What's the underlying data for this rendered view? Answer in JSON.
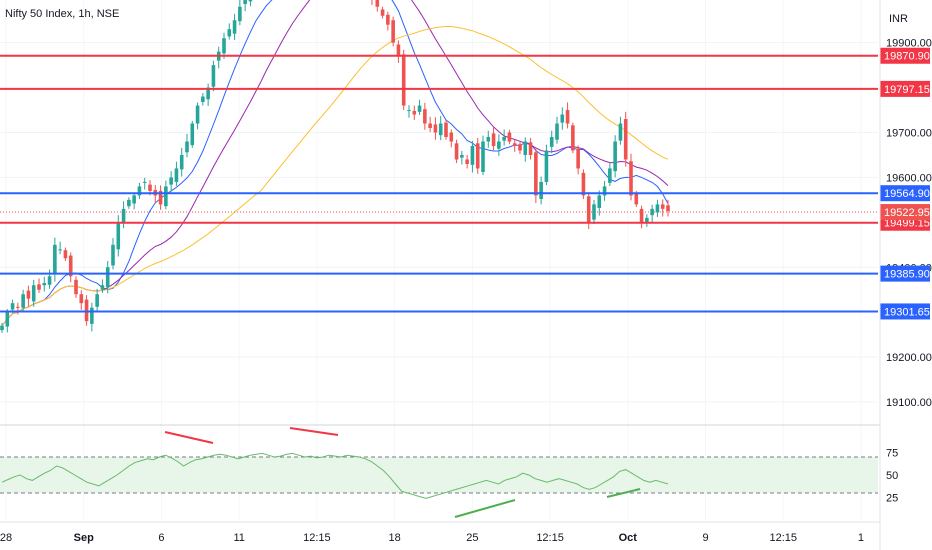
{
  "header": {
    "title": "Nifty 50 Index, 1h, NSE",
    "currency": "INR"
  },
  "colors": {
    "up": "#26a69a",
    "down": "#ef5350",
    "red_line": "#f23645",
    "blue_line": "#2962ff",
    "ma_fast": "#2962ff",
    "ma_mid": "#9c27b0",
    "ma_slow": "#fbc02d",
    "rsi_line": "#66bb6a",
    "rsi_band": "#e8f5e9",
    "divergence_bear": "#f23645",
    "divergence_bull": "#4caf50"
  },
  "chart_data": {
    "type": "candlestick",
    "price_axis": {
      "min": 19060,
      "max": 19995,
      "ticks": [
        {
          "value": 19100,
          "label": "19100.00"
        },
        {
          "value": 19200,
          "label": "19200.00"
        },
        {
          "value": 19400,
          "label": "19400.00"
        },
        {
          "value": 19600,
          "label": "19600.00"
        },
        {
          "value": 19700,
          "label": "19700.00"
        },
        {
          "value": 19900,
          "label": "19900.00"
        }
      ]
    },
    "time_axis": {
      "labels": [
        "28",
        "Sep",
        "6",
        "11",
        "12:15",
        "18",
        "25",
        "12:15",
        "Oct",
        "9",
        "12:15",
        "1"
      ],
      "bold": [
        "Sep",
        "Oct"
      ]
    },
    "horizontal_levels": [
      {
        "value": 19870.9,
        "label": "19870.90",
        "color": "red"
      },
      {
        "value": 19797.15,
        "label": "19797.15",
        "color": "red"
      },
      {
        "value": 19564.9,
        "label": "19564.90",
        "color": "blue"
      },
      {
        "value": 19499.15,
        "label": "19499.15",
        "color": "red"
      },
      {
        "value": 19385.9,
        "label": "19385.90",
        "color": "blue"
      },
      {
        "value": 19301.65,
        "label": "19301.65",
        "color": "blue"
      }
    ],
    "last_price": {
      "value": 19522.95,
      "label": "19522.95"
    },
    "close_path": [
      19270,
      19300,
      19320,
      19310,
      19340,
      19330,
      19360,
      19350,
      19365,
      19380,
      19450,
      19440,
      19420,
      19380,
      19340,
      19320,
      19280,
      19310,
      19340,
      19360,
      19400,
      19450,
      19500,
      19530,
      19550,
      19560,
      19580,
      19590,
      19570,
      19560,
      19540,
      19580,
      19600,
      19620,
      19650,
      19680,
      19720,
      19760,
      19780,
      19800,
      19850,
      19880,
      19910,
      19930,
      19950,
      19980,
      20000,
      20010,
      20020,
      20010,
      20030,
      20020,
      20040,
      20050,
      20060,
      20070,
      20060,
      20080,
      20090,
      20100,
      20110,
      20120,
      20110,
      20100,
      20080,
      20060,
      20050,
      20040,
      20030,
      20020,
      20000,
      19980,
      19960,
      19940,
      19900,
      19870,
      19760,
      19750,
      19740,
      19760,
      19720,
      19710,
      19700,
      19720,
      19690,
      19680,
      19640,
      19650,
      19630,
      19670,
      19620,
      19680,
      19690,
      19670,
      19680,
      19690,
      19680,
      19670,
      19660,
      19680,
      19650,
      19560,
      19590,
      19660,
      19690,
      19720,
      19740,
      19720,
      19660,
      19620,
      19560,
      19500,
      19540,
      19560,
      19580,
      19620,
      19680,
      19720,
      19640,
      19560,
      19540,
      19500,
      19510,
      19530,
      19540,
      19530,
      19525
    ],
    "moving_averages": [
      {
        "color": "blue",
        "period": 9
      },
      {
        "color": "purple",
        "period": 20
      },
      {
        "color": "yellow",
        "period": 50
      }
    ],
    "rsi": {
      "ticks": [
        75,
        50,
        25
      ],
      "upper": 70,
      "lower": 30,
      "path": [
        42,
        45,
        48,
        50,
        46,
        44,
        48,
        52,
        55,
        60,
        58,
        54,
        50,
        46,
        42,
        40,
        38,
        42,
        46,
        50,
        55,
        60,
        64,
        66,
        68,
        67,
        70,
        72,
        69,
        65,
        60,
        64,
        67,
        68,
        70,
        72,
        73,
        72,
        70,
        68,
        70,
        72,
        73,
        74,
        72,
        70,
        71,
        73,
        74,
        72,
        70,
        71,
        69,
        70,
        72,
        71,
        70,
        72,
        71,
        70,
        68,
        65,
        60,
        55,
        48,
        40,
        32,
        30,
        28,
        26,
        24,
        26,
        28,
        30,
        32,
        34,
        36,
        38,
        40,
        42,
        44,
        42,
        40,
        44,
        46,
        48,
        52,
        50,
        46,
        44,
        42,
        44,
        46,
        44,
        42,
        40,
        36,
        34,
        36,
        40,
        44,
        48,
        54,
        56,
        52,
        48,
        44,
        42,
        44,
        42,
        40
      ]
    }
  }
}
